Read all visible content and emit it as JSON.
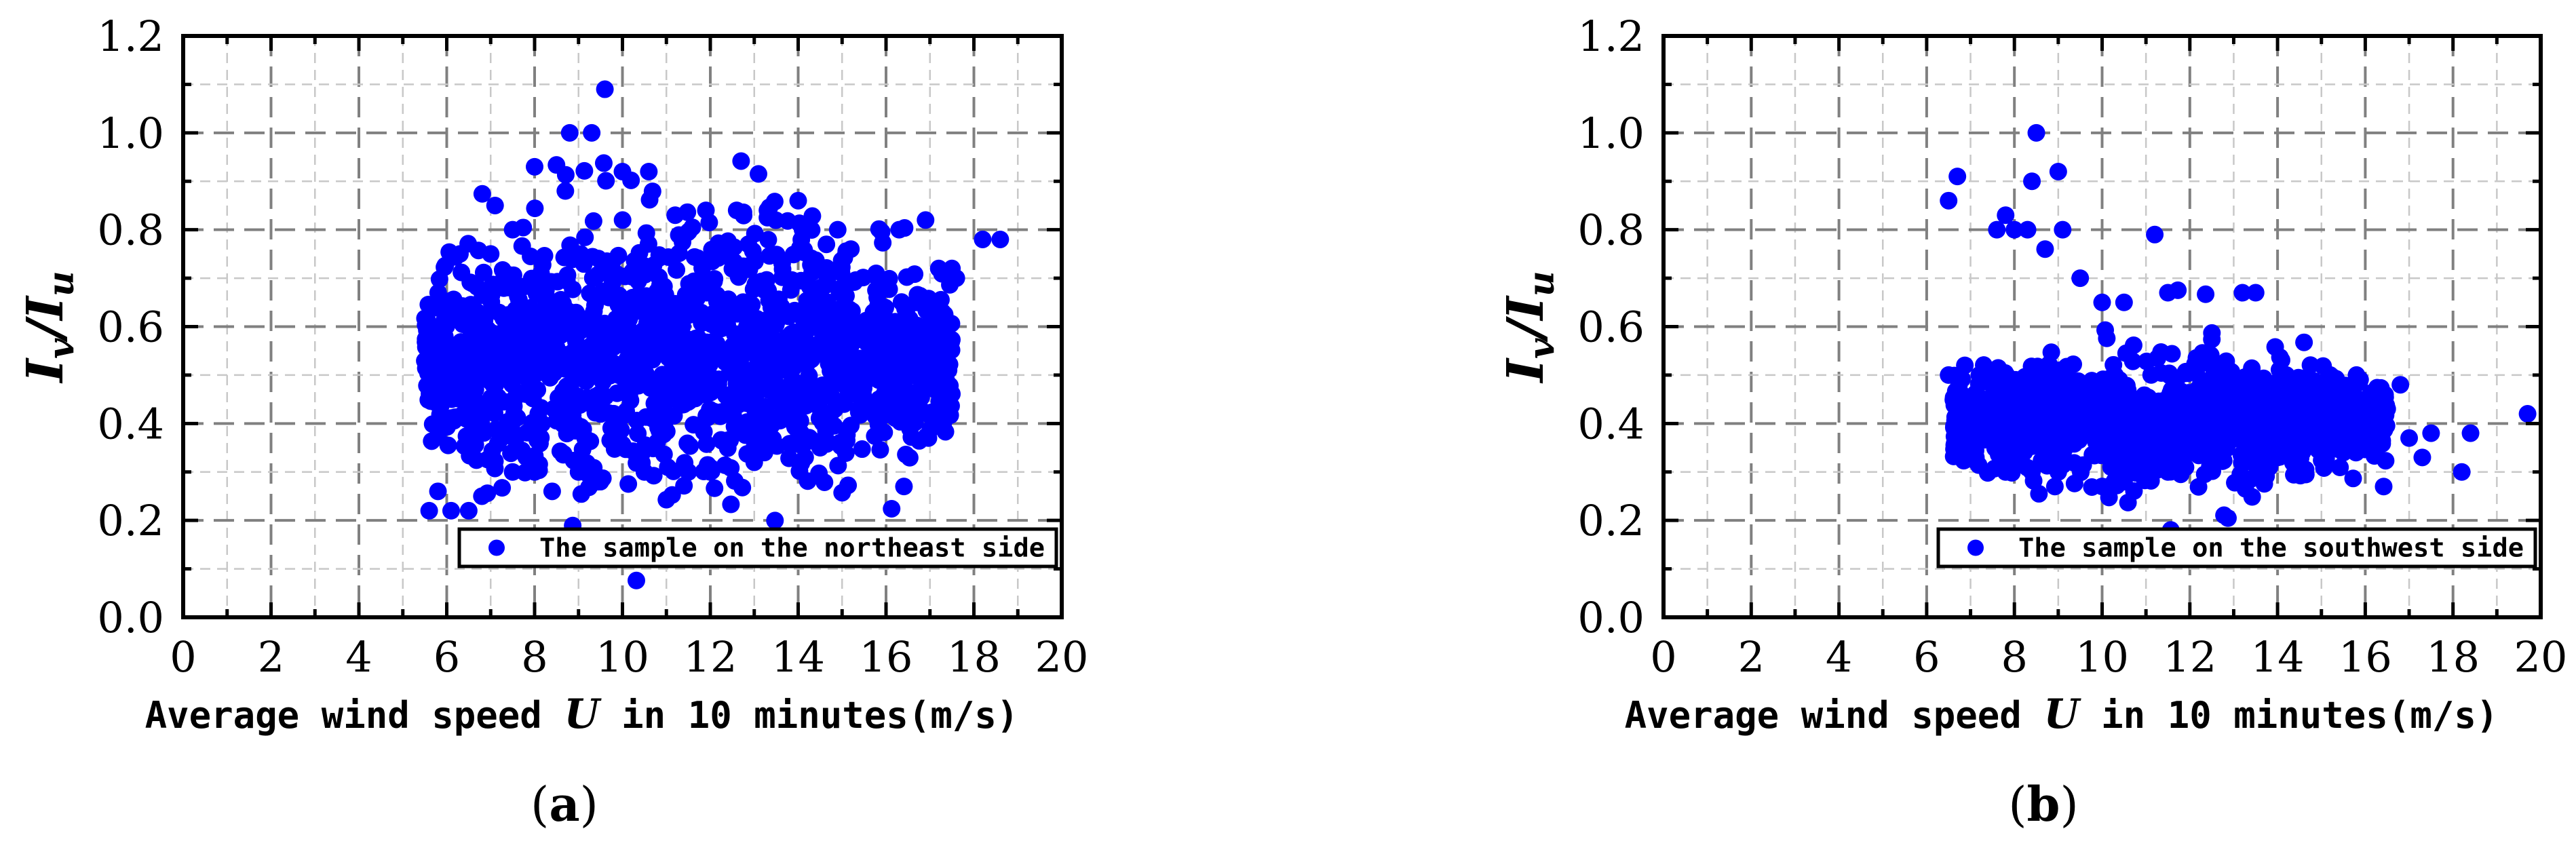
{
  "chart_data": [
    {
      "type": "scatter",
      "panel_label": "a",
      "xlabel_parts": [
        "Average wind speed ",
        "U",
        " in 10 minutes(m/s)"
      ],
      "ylabel_parts": [
        "I",
        "v",
        "/",
        "I",
        "u"
      ],
      "xlim": [
        0,
        20
      ],
      "ylim": [
        0,
        1.2
      ],
      "xticks": [
        0,
        2,
        4,
        6,
        8,
        10,
        12,
        14,
        16,
        18,
        20
      ],
      "yticks": [
        "0.0",
        "0.2",
        "0.4",
        "0.6",
        "0.8",
        "1.0",
        "1.2"
      ],
      "grid": true,
      "legend_position": "bottom-right",
      "color": "#0000ff",
      "series": [
        {
          "name": "The sample on the northeast side",
          "cloud": {
            "x_range": [
              5.5,
              17.5
            ],
            "y_center": 0.54,
            "spread": 0.14,
            "count": 1500
          },
          "points": [
            [
              5.6,
              0.22
            ],
            [
              5.8,
              0.26
            ],
            [
              6.1,
              0.22
            ],
            [
              6.3,
              0.75
            ],
            [
              6.5,
              0.22
            ],
            [
              6.8,
              0.25
            ],
            [
              7.0,
              0.75
            ],
            [
              7.1,
              0.85
            ],
            [
              7.5,
              0.8
            ],
            [
              8.0,
              0.93
            ],
            [
              8.4,
              0.26
            ],
            [
              8.7,
              0.88
            ],
            [
              8.8,
              1.0
            ],
            [
              9.3,
              1.0
            ],
            [
              9.6,
              1.09
            ],
            [
              10.0,
              0.92
            ],
            [
              10.6,
              0.92
            ],
            [
              11.2,
              0.83
            ],
            [
              11.9,
              0.84
            ],
            [
              12.6,
              0.84
            ],
            [
              13.3,
              0.84
            ],
            [
              14.0,
              0.86
            ],
            [
              14.1,
              0.8
            ],
            [
              14.9,
              0.8
            ],
            [
              15.2,
              0.76
            ],
            [
              15.8,
              0.66
            ],
            [
              16.3,
              0.8
            ],
            [
              16.7,
              0.65
            ],
            [
              16.9,
              0.82
            ],
            [
              17.2,
              0.72
            ],
            [
              17.5,
              0.72
            ],
            [
              17.6,
              0.7
            ],
            [
              18.2,
              0.78
            ],
            [
              18.6,
              0.78
            ],
            [
              17.2,
              0.62
            ],
            [
              16.0,
              0.6
            ],
            [
              15.5,
              0.45
            ],
            [
              14.5,
              0.35
            ],
            [
              13.0,
              0.32
            ],
            [
              12.0,
              0.3
            ],
            [
              11.5,
              0.3
            ],
            [
              10.5,
              0.3
            ],
            [
              9.5,
              0.28
            ],
            [
              9.0,
              0.3
            ],
            [
              8.0,
              0.3
            ],
            [
              7.5,
              0.3
            ],
            [
              17.0,
              0.54
            ],
            [
              16.5,
              0.5
            ]
          ]
        }
      ]
    },
    {
      "type": "scatter",
      "panel_label": "b",
      "xlabel_parts": [
        "Average wind speed ",
        "U",
        " in 10 minutes(m/s)"
      ],
      "ylabel_parts": [
        "I",
        "v",
        "/",
        "I",
        "u"
      ],
      "xlim": [
        0,
        20
      ],
      "ylim": [
        0,
        1.2
      ],
      "xticks": [
        0,
        2,
        4,
        6,
        8,
        10,
        12,
        14,
        16,
        18,
        20
      ],
      "yticks": [
        "0.0",
        "0.2",
        "0.4",
        "0.6",
        "0.8",
        "1.0",
        "1.2"
      ],
      "grid": true,
      "legend_position": "bottom-right",
      "color": "#0000ff",
      "series": [
        {
          "name": "The sample on the southwest side",
          "cloud": {
            "x_range": [
              6.6,
              16.5
            ],
            "y_center": 0.41,
            "spread": 0.07,
            "count": 1100
          },
          "points": [
            [
              6.5,
              0.86
            ],
            [
              6.7,
              0.91
            ],
            [
              7.0,
              0.45
            ],
            [
              7.2,
              0.5
            ],
            [
              7.3,
              0.5
            ],
            [
              7.6,
              0.8
            ],
            [
              7.8,
              0.83
            ],
            [
              8.0,
              0.8
            ],
            [
              8.3,
              0.8
            ],
            [
              8.5,
              1.0
            ],
            [
              8.4,
              0.9
            ],
            [
              8.7,
              0.76
            ],
            [
              9.0,
              0.92
            ],
            [
              9.1,
              0.8
            ],
            [
              9.5,
              0.7
            ],
            [
              10.0,
              0.65
            ],
            [
              10.5,
              0.65
            ],
            [
              11.2,
              0.79
            ],
            [
              11.5,
              0.67
            ],
            [
              12.5,
              0.52
            ],
            [
              13.2,
              0.67
            ],
            [
              13.5,
              0.67
            ],
            [
              14.2,
              0.5
            ],
            [
              15.2,
              0.5
            ],
            [
              15.8,
              0.5
            ],
            [
              16.0,
              0.43
            ],
            [
              16.5,
              0.43
            ],
            [
              16.8,
              0.48
            ],
            [
              17.0,
              0.37
            ],
            [
              17.3,
              0.33
            ],
            [
              17.5,
              0.38
            ],
            [
              18.2,
              0.3
            ],
            [
              18.4,
              0.38
            ],
            [
              19.7,
              0.42
            ],
            [
              6.5,
              0.5
            ],
            [
              7.8,
              0.3
            ],
            [
              8.4,
              0.3
            ],
            [
              9.0,
              0.3
            ],
            [
              10.0,
              0.27
            ],
            [
              10.5,
              0.28
            ],
            [
              11.5,
              0.3
            ],
            [
              12.5,
              0.32
            ],
            [
              14.0,
              0.33
            ],
            [
              15.5,
              0.34
            ]
          ]
        }
      ]
    }
  ]
}
